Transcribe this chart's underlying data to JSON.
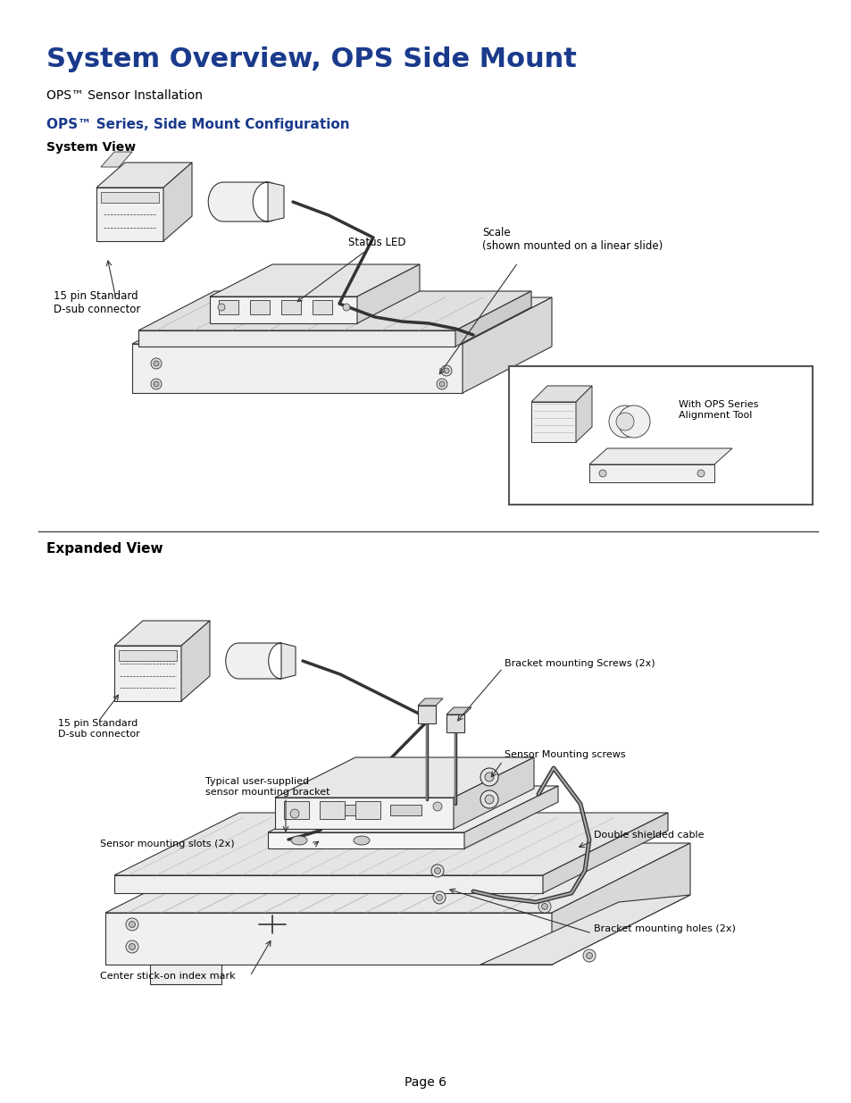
{
  "title": "System Overview, OPS Side Mount",
  "subtitle": "OPS™ Sensor Installation",
  "section_title": "OPS™ Series, Side Mount Configuration",
  "section_subtitle": "System View",
  "expanded_view_title": "Expanded View",
  "page_number": "Page 6",
  "title_color": "#1a3a8c",
  "section_title_color": "#1a3a8c",
  "body_color": "#000000",
  "bg_color": "#ffffff",
  "line_color": "#333333",
  "lw": 0.8
}
